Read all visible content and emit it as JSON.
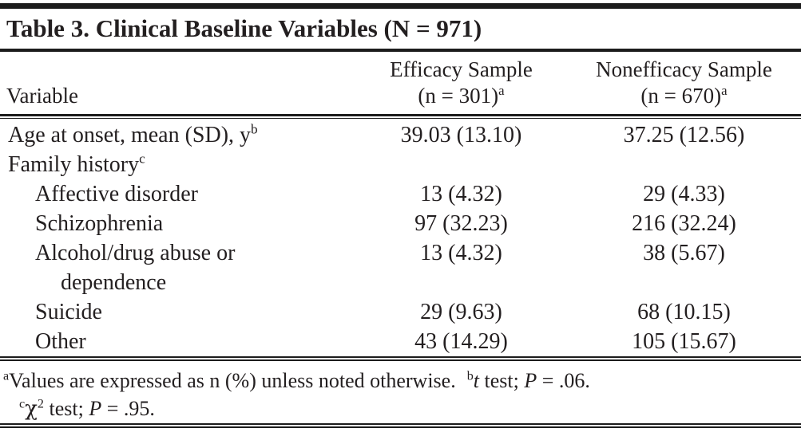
{
  "table": {
    "title": "Table 3. Clinical Baseline Variables (N = 971)",
    "header": {
      "variable": "Variable",
      "efficacy_line1": "Efficacy Sample",
      "efficacy_line2": "(n = 301)",
      "efficacy_sup": "a",
      "nonefficacy_line1": "Nonefficacy Sample",
      "nonefficacy_line2": "(n = 670)",
      "nonefficacy_sup": "a"
    },
    "rows": [
      {
        "label": "Age at onset, mean (SD), y",
        "sup": "b",
        "efficacy": "39.03 (13.10)",
        "nonefficacy": "37.25 (12.56)"
      },
      {
        "label": "Family history",
        "sup": "c",
        "efficacy": "",
        "nonefficacy": ""
      },
      {
        "label": "Affective disorder",
        "sup": "",
        "efficacy": "13 (4.32)",
        "nonefficacy": "29 (4.33)"
      },
      {
        "label": "Schizophrenia",
        "sup": "",
        "efficacy": "97 (32.23)",
        "nonefficacy": "216 (32.24)"
      },
      {
        "label": "Alcohol/drug abuse or",
        "label2": "dependence",
        "sup": "",
        "efficacy": "13 (4.32)",
        "nonefficacy": "38 (5.67)"
      },
      {
        "label": "Suicide",
        "sup": "",
        "efficacy": "29 (9.63)",
        "nonefficacy": "68 (10.15)"
      },
      {
        "label": "Other",
        "sup": "",
        "efficacy": "43 (14.29)",
        "nonefficacy": "105 (15.67)"
      }
    ]
  },
  "footnotes": {
    "a_sup": "a",
    "a_text": "Values are expressed as n (%) unless noted otherwise.",
    "b_sup": "b",
    "b_t": "t",
    "b_mid": " test; ",
    "b_p": "P",
    "b_val": " = .06.",
    "c_sup": "c",
    "c_chi": "χ",
    "c_chi_exp": "2",
    "c_mid": " test; ",
    "c_p": "P",
    "c_val": " = .95."
  },
  "colors": {
    "text": "#231f20",
    "rule": "#1c1c1c",
    "background": "#ffffff"
  }
}
